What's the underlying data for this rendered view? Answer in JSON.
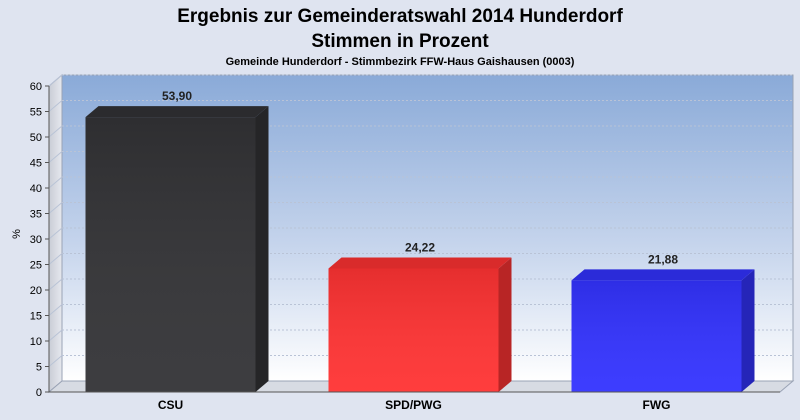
{
  "chart_data": {
    "type": "bar",
    "title": "Ergebnis zur Gemeinderatswahl 2014 Hunderdorf",
    "title_line2": "Stimmen in Prozent",
    "subtitle": "Gemeinde Hunderdorf - Stimmbezirk FFW-Haus Gaishausen (0003)",
    "ylabel": "%",
    "xlabel": "",
    "ylim": [
      0,
      60
    ],
    "yticks": [
      0,
      5,
      10,
      15,
      20,
      25,
      30,
      35,
      40,
      45,
      50,
      55,
      60
    ],
    "categories": [
      "CSU",
      "SPD/PWG",
      "FWG"
    ],
    "values": [
      53.9,
      24.22,
      21.88
    ],
    "value_labels": [
      "53,90",
      "24,22",
      "21,88"
    ],
    "colors": [
      "#333336",
      "#ff3333",
      "#3333ff"
    ],
    "grid": true
  }
}
